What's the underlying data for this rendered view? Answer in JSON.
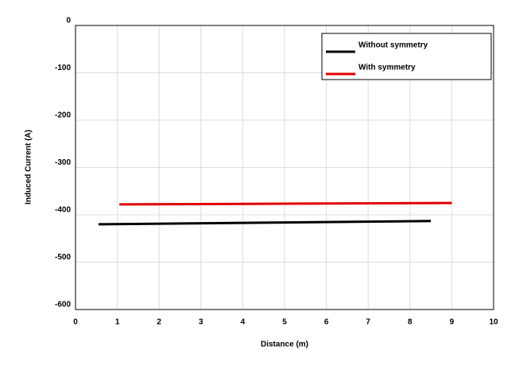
{
  "chart_data": {
    "type": "line",
    "x_label": "Distance (m)",
    "y_label": "Induced Current (A)",
    "xlim": [
      0,
      10
    ],
    "xticks": [
      0,
      1,
      2,
      3,
      4,
      5,
      6,
      7,
      8,
      9,
      10
    ],
    "ylim": [
      -600,
      0
    ],
    "yticks": [
      0,
      -100,
      -200,
      -300,
      -400,
      -500,
      -600
    ],
    "grid": true,
    "legend": "upper right",
    "series": [
      {
        "name": "Without symmetry",
        "color": "#000000",
        "x": [
          0.55,
          8.5
        ],
        "values": [
          -420,
          -413
        ]
      },
      {
        "name": "With symmetry",
        "color": "#e00000",
        "x": [
          1.05,
          9
        ],
        "values": [
          -378,
          -375
        ]
      }
    ]
  }
}
